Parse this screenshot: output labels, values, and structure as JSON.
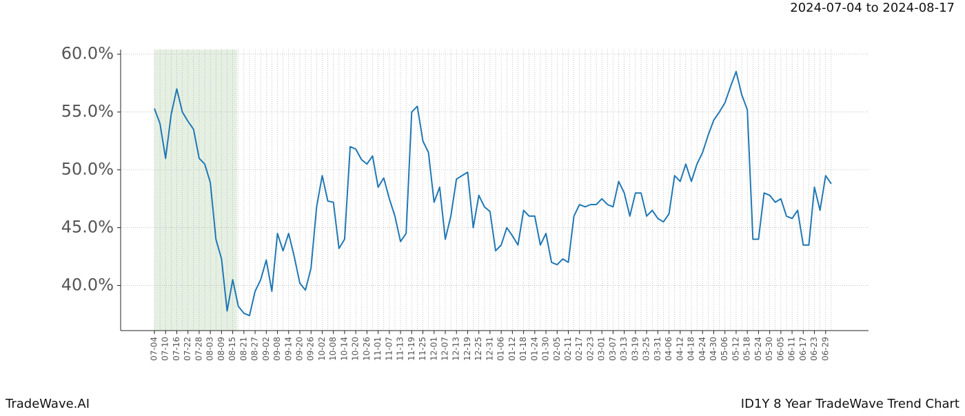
{
  "chart_data": {
    "type": "line",
    "title": "2024-07-04 to 2024-08-17",
    "footer_left": "TradeWave.AI",
    "footer_right": "ID1Y 8 Year TradeWave Trend Chart",
    "categories": [
      "07-04",
      null,
      "07-10",
      null,
      "07-16",
      null,
      "07-22",
      null,
      "07-28",
      null,
      "08-03",
      null,
      "08-09",
      null,
      "08-15",
      null,
      "08-21",
      null,
      "08-27",
      null,
      "09-02",
      null,
      "09-08",
      null,
      "09-14",
      null,
      "09-20",
      null,
      "09-26",
      null,
      "10-02",
      null,
      "10-08",
      null,
      "10-14",
      null,
      "10-20",
      null,
      "10-26",
      null,
      "11-01",
      null,
      "11-07",
      null,
      "11-13",
      null,
      "11-19",
      null,
      "11-25",
      null,
      "12-01",
      null,
      "12-07",
      null,
      "12-13",
      null,
      "12-19",
      null,
      "12-25",
      null,
      "12-31",
      null,
      "01-06",
      null,
      "01-12",
      null,
      "01-18",
      null,
      "01-24",
      null,
      "01-30",
      null,
      "02-05",
      null,
      "02-11",
      null,
      "02-17",
      null,
      "02-23",
      null,
      "03-01",
      null,
      "03-07",
      null,
      "03-13",
      null,
      "03-19",
      null,
      "03-25",
      null,
      "03-31",
      null,
      "04-06",
      null,
      "04-12",
      null,
      "04-18",
      null,
      "04-24",
      null,
      "04-30",
      null,
      "05-06",
      null,
      "05-12",
      null,
      "05-18",
      null,
      "05-24",
      null,
      "05-30",
      null,
      "06-05",
      null,
      "06-11",
      null,
      "06-17",
      null,
      "06-23",
      null,
      "06-29",
      null
    ],
    "series": [
      {
        "color": "#1f77b4",
        "values": [
          55.3,
          54.0,
          51.0,
          54.8,
          57.0,
          55.0,
          54.2,
          53.5,
          51.0,
          50.5,
          48.9,
          44.0,
          42.3,
          37.8,
          40.5,
          38.2,
          37.6,
          37.4,
          39.5,
          40.5,
          42.2,
          39.5,
          44.5,
          43.0,
          44.5,
          42.5,
          40.2,
          39.6,
          41.5,
          46.8,
          49.5,
          47.3,
          47.2,
          43.2,
          44.0,
          52.0,
          51.8,
          50.9,
          50.5,
          51.2,
          48.5,
          49.3,
          47.5,
          46.0,
          43.8,
          44.5,
          55.0,
          55.5,
          52.5,
          51.5,
          47.2,
          48.5,
          44.0,
          46.0,
          49.2,
          49.5,
          49.8,
          45.0,
          47.8,
          46.8,
          46.4,
          43.0,
          43.5,
          45.0,
          44.3,
          43.5,
          46.5,
          46.0,
          46.0,
          43.5,
          44.5,
          42.0,
          41.8,
          42.3,
          42.0,
          46.0,
          47.0,
          46.8,
          47.0,
          47.0,
          47.5,
          47.0,
          46.8,
          49.0,
          48.0,
          46.0,
          48.0,
          48.0,
          46.0,
          46.5,
          45.8,
          45.5,
          46.2,
          49.5,
          49.0,
          50.5,
          49.0,
          50.5,
          51.5,
          53.0,
          54.3,
          55.0,
          55.8,
          57.2,
          58.5,
          56.5,
          55.2,
          44.0,
          44.0,
          48.0,
          47.8,
          47.2,
          47.5,
          46.0,
          45.8,
          46.5,
          43.5,
          43.5,
          48.5,
          46.5,
          49.5,
          48.8
        ]
      }
    ],
    "ylim": [
      36.1,
      60.4
    ],
    "yticks": [
      {
        "value": 40,
        "label": "40.0%"
      },
      {
        "value": 45,
        "label": "45.0%"
      },
      {
        "value": 50,
        "label": "50.0%"
      },
      {
        "value": 55,
        "label": "55.0%"
      },
      {
        "value": 60,
        "label": "60.0%"
      }
    ],
    "grid": true
  }
}
